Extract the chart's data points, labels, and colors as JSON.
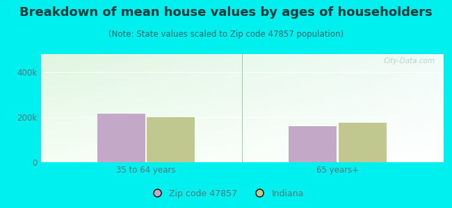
{
  "title": "Breakdown of mean house values by ages of householders",
  "subtitle": "(Note: State values scaled to Zip code 47857 population)",
  "categories": [
    "35 to 64 years",
    "65 years+"
  ],
  "series": [
    {
      "label": "Zip code 47857",
      "values": [
        215000,
        160000
      ],
      "color": "#c4a8c8"
    },
    {
      "label": "Indiana",
      "values": [
        200000,
        175000
      ],
      "color": "#c0c890"
    }
  ],
  "ylim": [
    0,
    480000
  ],
  "yticks": [
    0,
    200000,
    400000
  ],
  "ytick_labels": [
    "0",
    "200k",
    "400k"
  ],
  "background_color": "#00f0f0",
  "title_color": "#1a3a3a",
  "subtitle_color": "#336666",
  "tick_color": "#557777",
  "bar_width": 0.25,
  "title_fontsize": 13,
  "subtitle_fontsize": 8.5,
  "tick_fontsize": 8.5,
  "legend_fontsize": 9,
  "watermark": "City-Data.com"
}
